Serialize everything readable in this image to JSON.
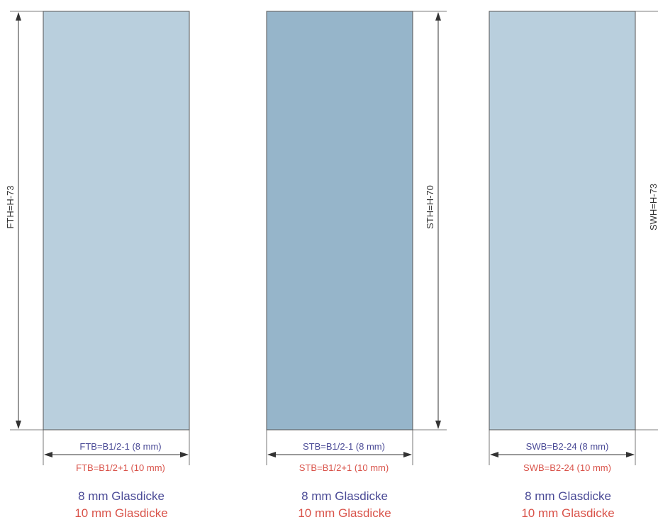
{
  "panels": [
    {
      "id": "ftb",
      "height_label": "FTH=H-73",
      "width_label_8mm": "FTB=B1/2-1 (8 mm)",
      "width_label_10mm": "FTB=B1/2+1 (10 mm)",
      "caption_8mm": "8 mm Glasdicke",
      "caption_10mm": "10 mm Glasdicke",
      "fill_color": "#b9cfdd"
    },
    {
      "id": "stb",
      "height_label": "STH=H-70",
      "width_label_8mm": "STB=B1/2-1 (8 mm)",
      "width_label_10mm": "STB=B1/2+1 (10 mm)",
      "caption_8mm": "8 mm Glasdicke",
      "caption_10mm": "10 mm Glasdicke",
      "fill_color": "#96b5ca"
    },
    {
      "id": "swb",
      "height_label": "SWH=H-73",
      "width_label_8mm": "SWB=B2-24 (8 mm)",
      "width_label_10mm": "SWB=B2-24 (10 mm)",
      "caption_8mm": "8 mm Glasdicke",
      "caption_10mm": "10 mm Glasdicke",
      "fill_color": "#b9cfdd"
    }
  ],
  "colors": {
    "line": "#555555",
    "label_8mm": "#4a4a96",
    "label_10mm": "#d9534a"
  }
}
